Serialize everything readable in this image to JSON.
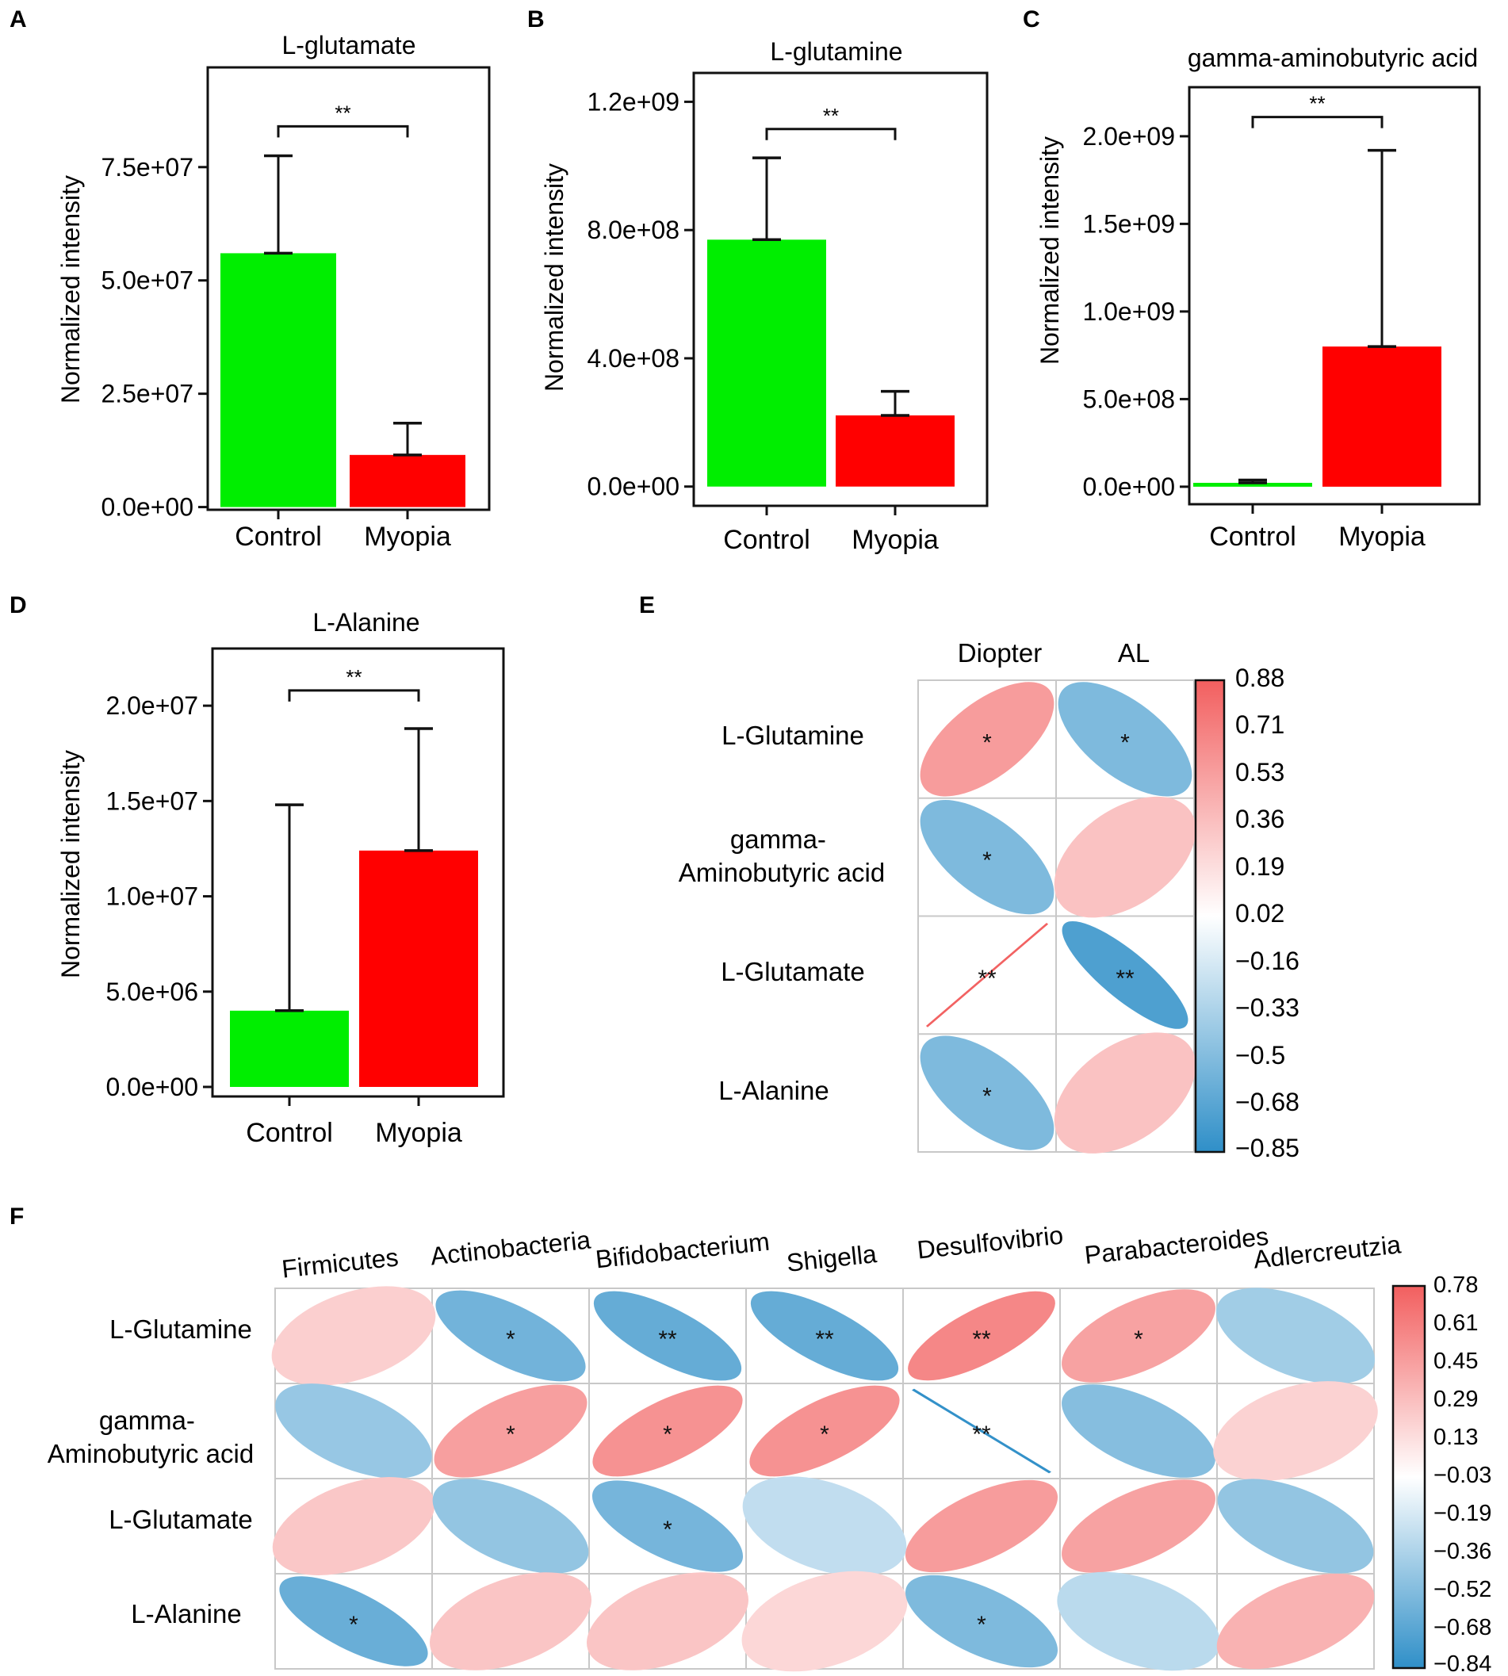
{
  "figure": {
    "panel_letters": [
      "A",
      "B",
      "C",
      "D",
      "E",
      "F"
    ]
  },
  "colors": {
    "control": "#00ee00",
    "myopia": "#ff0000",
    "pos_strong": "#f25f5f",
    "neg_strong": "#2f8fc8",
    "neutral": "#ffffff",
    "frame": "#111111",
    "grid": "#c8c8c8"
  },
  "chart_data": [
    {
      "id": "A",
      "type": "bar",
      "title": "L-glutamate",
      "categories": [
        "Control",
        "Myopia"
      ],
      "values": [
        56000000,
        11500000
      ],
      "error_upper": [
        77500000,
        18500000
      ],
      "ylabel": "Normalized intensity",
      "ylim": [
        -600000,
        97000000
      ],
      "yticks": [
        0,
        25000000,
        50000000,
        75000000
      ],
      "ytick_labels": [
        "0.0e+00",
        "2.5e+07",
        "5.0e+07",
        "7.5e+07"
      ],
      "significance": "**",
      "sig_y": 84000000
    },
    {
      "id": "B",
      "type": "bar",
      "title": "L-glutamine",
      "categories": [
        "Control",
        "Myopia"
      ],
      "values": [
        770000000,
        222000000
      ],
      "error_upper": [
        1025000000,
        297000000
      ],
      "ylabel": "Normalized intensity",
      "ylim": [
        -60000000,
        1290000000
      ],
      "yticks": [
        0,
        400000000,
        800000000,
        1200000000
      ],
      "ytick_labels": [
        "0.0e+00",
        "4.0e+08",
        "8.0e+08",
        "1.2e+09"
      ],
      "significance": "**",
      "sig_y": 1115000000
    },
    {
      "id": "C",
      "type": "bar",
      "title": "gamma-aminobutyric acid",
      "categories": [
        "Control",
        "Myopia"
      ],
      "values": [
        22000000,
        800000000
      ],
      "error_upper": [
        38000000,
        1920000000
      ],
      "ylabel": "Normalized intensity",
      "ylim": [
        -100000000,
        2280000000
      ],
      "yticks": [
        0,
        500000000,
        1000000000,
        1500000000,
        2000000000
      ],
      "ytick_labels": [
        "0.0e+00",
        "5.0e+08",
        "1.0e+09",
        "1.5e+09",
        "2.0e+09"
      ],
      "significance": "**",
      "sig_y": 2110000000
    },
    {
      "id": "D",
      "type": "bar",
      "title": "L-Alanine",
      "categories": [
        "Control",
        "Myopia"
      ],
      "values": [
        4000000,
        12400000
      ],
      "error_upper": [
        14800000,
        18800000
      ],
      "ylabel": "Normalized intensity",
      "ylim": [
        -500000,
        23000000
      ],
      "yticks": [
        0,
        5000000,
        10000000,
        15000000,
        20000000
      ],
      "ytick_labels": [
        "0.0e+00",
        "5.0e+06",
        "1.0e+07",
        "1.5e+07",
        "2.0e+07"
      ],
      "significance": "**",
      "sig_y": 20800000
    },
    {
      "id": "E",
      "type": "heatmap",
      "title": "",
      "columns": [
        "Diopter",
        "AL"
      ],
      "rows": [
        "L-Glutamine",
        "gamma-\nAminobutyric acid",
        "L-Glutamate",
        "L-Alanine"
      ],
      "values": [
        [
          0.62,
          -0.62
        ],
        [
          -0.62,
          0.38
        ],
        [
          0.98,
          -0.85
        ],
        [
          -0.62,
          0.38
        ]
      ],
      "significance": [
        [
          "*",
          "*"
        ],
        [
          "*",
          ""
        ],
        [
          "**",
          "**"
        ],
        [
          "*",
          ""
        ]
      ],
      "colorbar_range": [
        -0.85,
        0.88
      ],
      "colorbar_ticks": [
        "0.88",
        "0.71",
        "0.53",
        "0.36",
        "0.19",
        "0.02",
        "−0.16",
        "−0.33",
        "−0.5",
        "−0.68",
        "−0.85"
      ]
    },
    {
      "id": "F",
      "type": "heatmap",
      "title": "",
      "columns": [
        "Firmicutes",
        "Actinobacteria",
        "Bifidobacterium",
        "Shigella",
        "Desulfovibrio",
        "Parabacteroides",
        "Adlercreutzia"
      ],
      "rows": [
        "L-Glutamine",
        "gamma-\nAminobutyric acid",
        "L-Glutamate",
        "L-Alanine"
      ],
      "values": [
        [
          0.3,
          -0.68,
          -0.74,
          -0.74,
          0.75,
          0.58,
          -0.45
        ],
        [
          -0.5,
          0.6,
          0.68,
          0.68,
          -0.98,
          -0.58,
          0.28
        ],
        [
          0.35,
          -0.52,
          -0.66,
          -0.3,
          0.62,
          0.58,
          -0.52
        ],
        [
          -0.72,
          0.36,
          0.36,
          0.25,
          -0.62,
          -0.33,
          0.48
        ]
      ],
      "significance": [
        [
          "",
          "*",
          "**",
          "**",
          "**",
          "*",
          ""
        ],
        [
          "",
          "*",
          "*",
          "*",
          "**",
          "",
          ""
        ],
        [
          "",
          "",
          "*",
          "",
          "",
          "",
          ""
        ],
        [
          "*",
          "",
          "",
          "",
          "*",
          "",
          ""
        ]
      ],
      "colorbar_range": [
        -0.84,
        0.78
      ],
      "colorbar_ticks": [
        "0.78",
        "0.61",
        "0.45",
        "0.29",
        "0.13",
        "−0.03",
        "−0.19",
        "−0.36",
        "−0.52",
        "−0.68",
        "−0.84"
      ]
    }
  ]
}
